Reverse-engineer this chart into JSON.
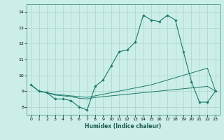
{
  "title": "",
  "xlabel": "Humidex (Indice chaleur)",
  "ylabel": "",
  "background_color": "#cceee8",
  "grid_color": "#b0d8d0",
  "line_color": "#1a7a6a",
  "xlim": [
    -0.5,
    23.5
  ],
  "ylim": [
    7.5,
    14.5
  ],
  "yticks": [
    8,
    9,
    10,
    11,
    12,
    13,
    14
  ],
  "xticks": [
    0,
    1,
    2,
    3,
    4,
    5,
    6,
    7,
    8,
    9,
    10,
    11,
    12,
    13,
    14,
    15,
    16,
    17,
    18,
    19,
    20,
    21,
    22,
    23
  ],
  "series1_x": [
    0,
    1,
    2,
    3,
    4,
    5,
    6,
    7,
    8,
    9,
    10,
    11,
    12,
    13,
    14,
    15,
    16,
    17,
    18,
    19,
    20,
    21,
    22,
    23
  ],
  "series1_y": [
    9.4,
    9.0,
    8.9,
    8.5,
    8.5,
    8.4,
    8.0,
    7.8,
    9.3,
    9.7,
    10.6,
    11.5,
    11.6,
    12.1,
    13.8,
    13.5,
    13.4,
    13.8,
    13.5,
    11.5,
    9.6,
    8.3,
    8.3,
    9.0
  ],
  "series2_x": [
    0,
    1,
    2,
    3,
    4,
    5,
    6,
    7,
    8,
    9,
    10,
    11,
    12,
    13,
    14,
    15,
    16,
    17,
    18,
    19,
    20,
    21,
    22,
    23
  ],
  "series2_y": [
    9.4,
    9.0,
    8.9,
    8.8,
    8.75,
    8.7,
    8.65,
    8.6,
    8.7,
    8.8,
    8.9,
    9.0,
    9.1,
    9.2,
    9.3,
    9.4,
    9.55,
    9.7,
    9.85,
    10.0,
    10.15,
    10.3,
    10.45,
    9.0
  ],
  "series3_x": [
    0,
    1,
    2,
    3,
    4,
    5,
    6,
    7,
    8,
    9,
    10,
    11,
    12,
    13,
    14,
    15,
    16,
    17,
    18,
    19,
    20,
    21,
    22,
    23
  ],
  "series3_y": [
    9.4,
    9.0,
    8.9,
    8.75,
    8.7,
    8.65,
    8.55,
    8.5,
    8.6,
    8.65,
    8.7,
    8.75,
    8.8,
    8.85,
    8.9,
    8.95,
    9.0,
    9.05,
    9.1,
    9.15,
    9.2,
    9.25,
    9.3,
    9.0
  ]
}
